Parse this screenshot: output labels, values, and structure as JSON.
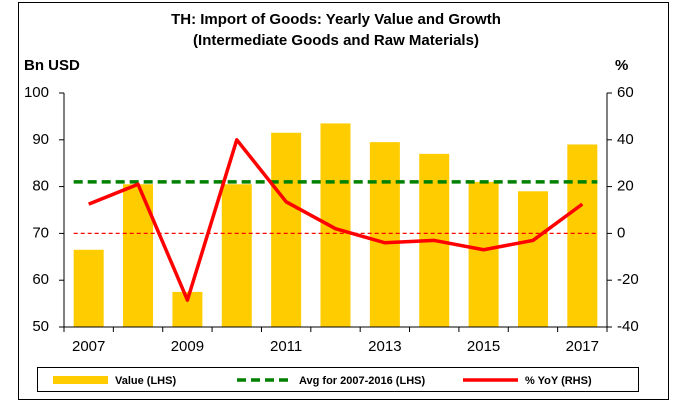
{
  "chart_data": {
    "type": "bar",
    "title": "TH: Import of Goods: Yearly Value and Growth",
    "subtitle": "(Intermediate Goods and Raw Materials)",
    "y_label": "Bn USD",
    "y2_label": "%",
    "categories": [
      "2007",
      null,
      "2009",
      null,
      "2011",
      null,
      "2013",
      null,
      "2015",
      null,
      "2017"
    ],
    "series": [
      {
        "name": "Value (LHS)",
        "type": "bar",
        "color": "#ffcc00",
        "values": [
          66.5,
          80.5,
          57.5,
          80.5,
          91.5,
          93.5,
          89.5,
          87,
          81,
          79,
          89
        ]
      },
      {
        "name": "Avg for 2007-2016 (LHS)",
        "type": "hline",
        "color": "#008000",
        "value": 81
      },
      {
        "name": "% YoY (RHS)",
        "type": "line",
        "color": "#ff0000",
        "axis": "y2",
        "values": [
          12.5,
          21,
          -28.5,
          40,
          13.5,
          2,
          -4,
          -3,
          -7,
          -3,
          12.5
        ]
      }
    ],
    "reference_line_y2": 0,
    "reference_color": "#ff0000",
    "ylim": [
      50,
      100
    ],
    "yticks": [
      50,
      60,
      70,
      80,
      90,
      100
    ],
    "y2lim": [
      -40,
      60
    ],
    "y2ticks": [
      -40,
      -20,
      0,
      20,
      40,
      60
    ],
    "legend": "bottom"
  }
}
